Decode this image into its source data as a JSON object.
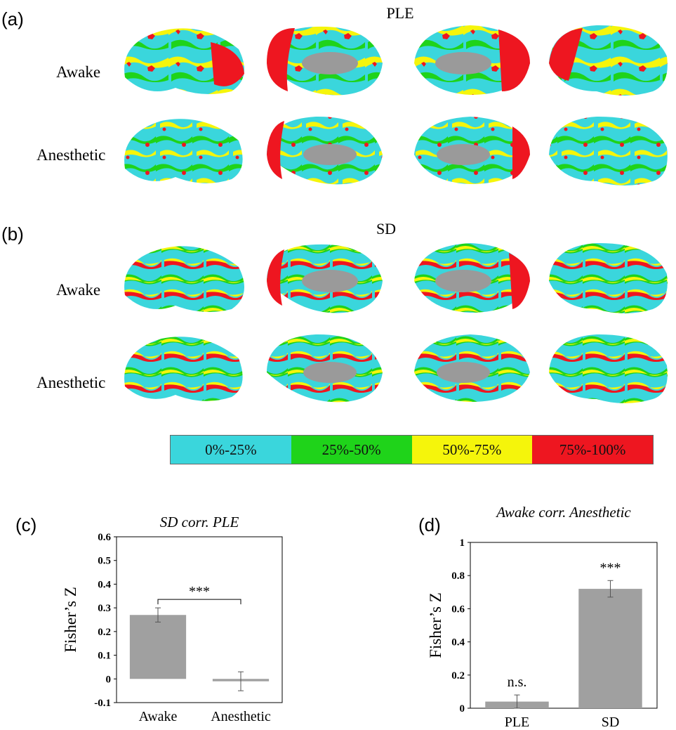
{
  "panel_a": {
    "letter": "(a)",
    "title": "PLE",
    "rows": [
      {
        "label": "Awake"
      },
      {
        "label": "Anesthetic"
      }
    ]
  },
  "panel_b": {
    "letter": "(b)",
    "title": "SD",
    "rows": [
      {
        "label": "Awake"
      },
      {
        "label": "Anesthetic"
      }
    ]
  },
  "brain_icon": "inflated-cortical-surface",
  "legend": {
    "items": [
      {
        "label": "0%-25%",
        "color": "#3ad6dc"
      },
      {
        "label": "25%-50%",
        "color": "#1fd31a"
      },
      {
        "label": "50%-75%",
        "color": "#f5f50b"
      },
      {
        "label": "75%-100%",
        "color": "#ee1620"
      }
    ]
  },
  "colors": {
    "bar": "#a0a0a0",
    "medial_wall": "#9a9a9a"
  },
  "panel_c": {
    "letter": "(c)"
  },
  "panel_d": {
    "letter": "(d)"
  },
  "chart_data": [
    {
      "type": "bar",
      "title": "SD corr. PLE",
      "ylabel": "Fisher’s Z",
      "categories": [
        "Awake",
        "Anesthetic"
      ],
      "values": [
        0.27,
        -0.01
      ],
      "errors": [
        0.03,
        0.04
      ],
      "ylim": [
        -0.1,
        0.6
      ],
      "yticks": [
        "0.6",
        "0.5",
        "0.4",
        "0.3",
        "0.2",
        "0.1",
        "0",
        "-0.1"
      ],
      "ytick_values": [
        0.6,
        0.5,
        0.4,
        0.3,
        0.2,
        0.1,
        0,
        -0.1
      ],
      "significance": {
        "label": "***",
        "between": [
          "Awake",
          "Anesthetic"
        ]
      }
    },
    {
      "type": "bar",
      "title": "Awake corr. Anesthetic",
      "ylabel": "Fisher’s Z",
      "categories": [
        "PLE",
        "SD"
      ],
      "values": [
        0.04,
        0.72
      ],
      "errors": [
        0.04,
        0.05
      ],
      "ylim": [
        0,
        1
      ],
      "yticks": [
        "1",
        "0.8",
        "0.6",
        "0.4",
        "0.2",
        "0"
      ],
      "ytick_values": [
        1,
        0.8,
        0.6,
        0.4,
        0.2,
        0
      ],
      "bar_labels": [
        "n.s.",
        "***"
      ]
    }
  ]
}
